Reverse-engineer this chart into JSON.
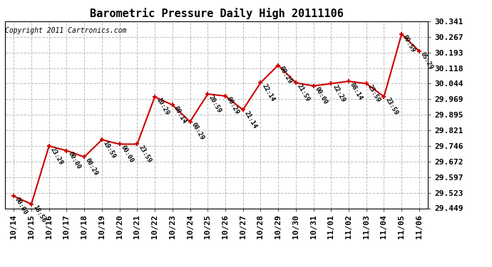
{
  "title": "Barometric Pressure Daily High 20111106",
  "copyright": "Copyright 2011 Cartronics.com",
  "background_color": "#ffffff",
  "plot_background": "#ffffff",
  "x_labels": [
    "10/14",
    "10/15",
    "10/16",
    "10/17",
    "10/18",
    "10/19",
    "10/20",
    "10/21",
    "10/22",
    "10/23",
    "10/24",
    "10/25",
    "10/26",
    "10/27",
    "10/28",
    "10/29",
    "10/30",
    "10/31",
    "11/01",
    "11/02",
    "11/03",
    "11/04",
    "11/05",
    "11/06"
  ],
  "y_values": [
    29.507,
    29.469,
    29.746,
    29.724,
    29.694,
    29.776,
    29.755,
    29.755,
    29.981,
    29.942,
    29.862,
    29.994,
    29.985,
    29.919,
    30.048,
    30.132,
    30.048,
    30.033,
    30.044,
    30.055,
    30.044,
    29.982,
    30.28,
    30.199
  ],
  "time_labels": [
    "00:00",
    "18:56",
    "23:29",
    "00:00",
    "08:29",
    "19:59",
    "00:00",
    "23:59",
    "10:29",
    "08:14",
    "08:29",
    "20:59",
    "00:29",
    "21:14",
    "22:14",
    "08:29",
    "21:59",
    "00:00",
    "22:29",
    "08:14",
    "23:59",
    "23:59",
    "09:59",
    "05:29"
  ],
  "ylim_min": 29.449,
  "ylim_max": 30.341,
  "ytick_values": [
    29.449,
    29.523,
    29.597,
    29.672,
    29.746,
    29.821,
    29.895,
    29.969,
    30.044,
    30.118,
    30.193,
    30.267,
    30.341
  ],
  "line_color": "#cc0000",
  "marker_color": "#cc0000",
  "title_fontsize": 11,
  "copyright_fontsize": 7,
  "tick_fontsize": 8,
  "annot_fontsize": 6.5,
  "grid_color": "#bbbbbb",
  "grid_style": "--"
}
